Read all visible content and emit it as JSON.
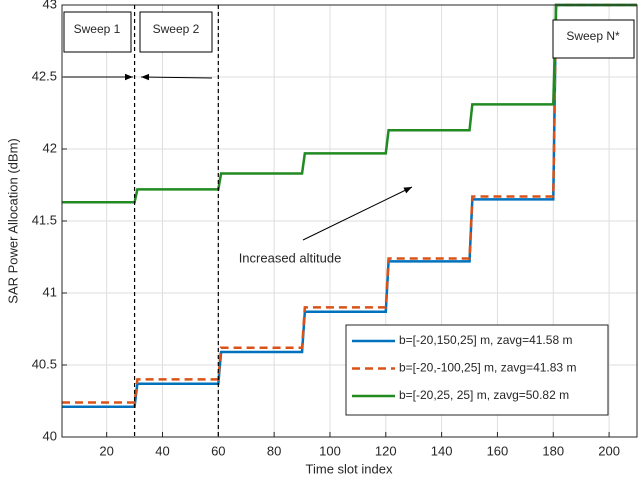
{
  "chart_data": {
    "type": "line",
    "xlabel": "Time slot index",
    "ylabel": "SAR Power Allocation (dBm)",
    "x": [
      4,
      30,
      31,
      60,
      61,
      90,
      91,
      120,
      121,
      150,
      151,
      180,
      181,
      210
    ],
    "series": [
      {
        "name": "b=[-20,150,25] m, zavg=41.58 m",
        "color": "#0072bd",
        "dash": false,
        "values": [
          40.21,
          40.21,
          40.37,
          40.37,
          40.59,
          40.59,
          40.87,
          40.87,
          41.22,
          41.22,
          41.65,
          41.65,
          43,
          43
        ]
      },
      {
        "name": "b=[-20,-100,25] m, zavg=41.83 m",
        "color": "#d95319",
        "dash": true,
        "values": [
          40.24,
          40.24,
          40.4,
          40.4,
          40.62,
          40.62,
          40.9,
          40.9,
          41.24,
          41.24,
          41.67,
          41.67,
          43,
          43
        ]
      },
      {
        "name": "b=[-20,25, 25] m, zavg=50.82 m",
        "color": "#218a21",
        "dash": false,
        "values": [
          41.63,
          41.63,
          41.72,
          41.72,
          41.83,
          41.83,
          41.97,
          41.97,
          42.13,
          42.13,
          42.31,
          42.31,
          43,
          43
        ]
      }
    ],
    "xlim": [
      4,
      210
    ],
    "ylim": [
      40,
      43
    ],
    "xticks": [
      20,
      40,
      60,
      80,
      100,
      120,
      140,
      160,
      180,
      200
    ],
    "yticks": [
      40,
      40.5,
      41,
      41.5,
      42,
      42.5,
      43
    ],
    "grid": true,
    "sweep_lines": [
      30,
      60
    ],
    "annotations": [
      "Sweep 1",
      "Sweep 2",
      "Sweep N*",
      "Increased altitude"
    ]
  }
}
